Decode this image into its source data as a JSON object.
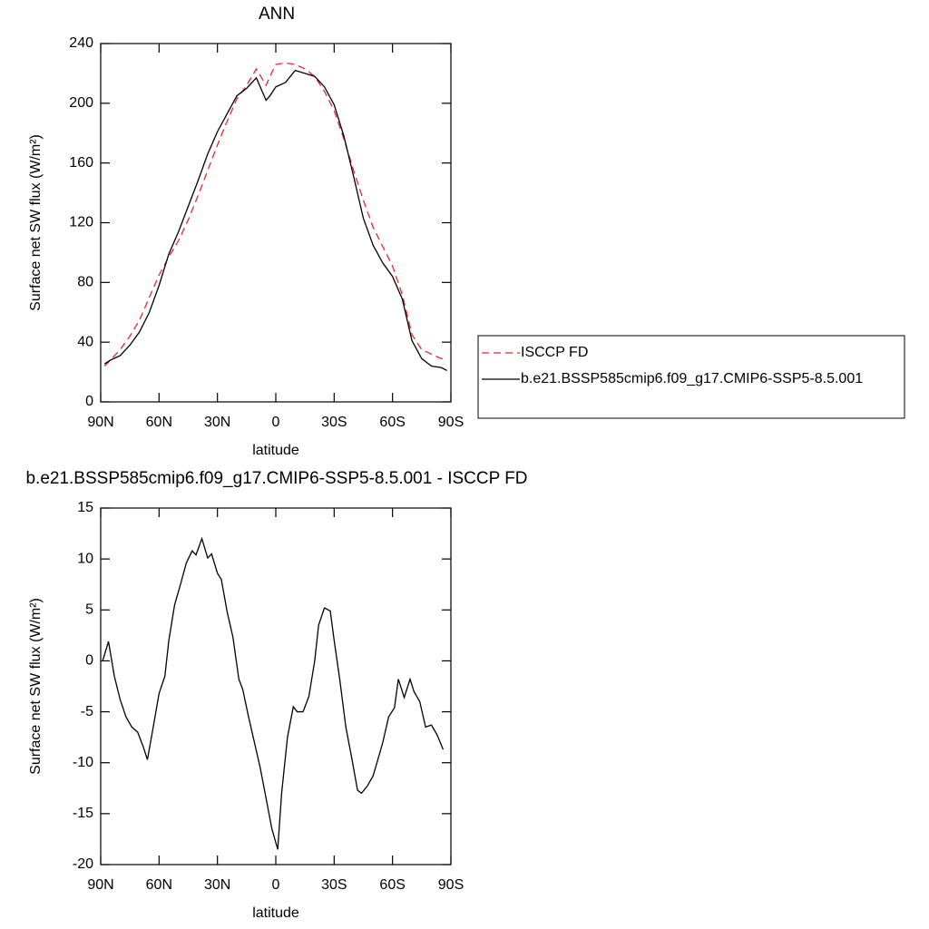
{
  "chart_data": [
    {
      "type": "line",
      "title": "ANN",
      "x_label": "latitude",
      "y_label": "Surface net SW flux (W/m²)",
      "xlim": [
        90,
        -90
      ],
      "xticks": [
        {
          "value": 90,
          "label": "90N"
        },
        {
          "value": 60,
          "label": "60N"
        },
        {
          "value": 30,
          "label": "30N"
        },
        0,
        {
          "value": -30,
          "label": "30S"
        },
        {
          "value": -60,
          "label": "60S"
        },
        {
          "value": -90,
          "label": "90S"
        }
      ],
      "ylim": [
        0,
        240
      ],
      "yticks": [
        0,
        40,
        80,
        120,
        160,
        200,
        240
      ],
      "x": [
        88,
        85,
        80,
        75,
        70,
        65,
        60,
        55,
        50,
        45,
        40,
        35,
        30,
        25,
        20,
        15,
        10,
        5,
        3,
        0,
        -5,
        -10,
        -15,
        -20,
        -25,
        -30,
        -35,
        -40,
        -45,
        -50,
        -55,
        -60,
        -65,
        -70,
        -75,
        -80,
        -85,
        -88
      ],
      "legend": "right",
      "series": [
        {
          "name": "ISCCP FD",
          "color": "#e8262d",
          "dash": true,
          "values": [
            24,
            28,
            35,
            44,
            55,
            70,
            85,
            97,
            108,
            122,
            138,
            155,
            172,
            188,
            203,
            212,
            223,
            212,
            218,
            226,
            227,
            226,
            223,
            218,
            208,
            195,
            176,
            155,
            135,
            117,
            104,
            91,
            72,
            45,
            35,
            32,
            29,
            29
          ]
        },
        {
          "name": "b.e21.BSSP585cmip6.f09_g17.CMIP6-SSP5-8.5.001",
          "color": "#000000",
          "dash": false,
          "values": [
            25.5,
            28,
            31,
            38,
            47,
            60,
            78,
            99,
            114,
            131,
            148,
            166,
            181,
            193,
            205,
            210,
            217,
            202,
            205,
            211,
            214,
            222,
            220,
            218,
            211,
            199,
            178,
            151,
            123,
            105,
            93,
            84,
            69,
            41,
            29,
            24,
            23,
            21
          ]
        }
      ]
    },
    {
      "type": "line",
      "title": "b.e21.BSSP585cmip6.f09_g17.CMIP6-SSP5-8.5.001 - ISCCP FD",
      "x_label": "latitude",
      "y_label": "Surface net SW flux (W/m²)",
      "xlim": [
        90,
        -90
      ],
      "xticks": [
        {
          "value": 90,
          "label": "90N"
        },
        {
          "value": 60,
          "label": "60N"
        },
        {
          "value": 30,
          "label": "30N"
        },
        0,
        {
          "value": -30,
          "label": "30S"
        },
        {
          "value": -60,
          "label": "60S"
        },
        {
          "value": -90,
          "label": "90S"
        }
      ],
      "ylim": [
        -20,
        15
      ],
      "yticks": [
        -20,
        -15,
        -10,
        -5,
        0,
        5,
        10,
        15
      ],
      "x": [
        89,
        86,
        83,
        80,
        77,
        74,
        71,
        68,
        66,
        63,
        60,
        57,
        55,
        52,
        49,
        46,
        43,
        41,
        38,
        35,
        33,
        30,
        28,
        25,
        22,
        19,
        17,
        14,
        11,
        8,
        5,
        2,
        -1,
        -3,
        -6,
        -9,
        -11,
        -14,
        -17,
        -20,
        -22,
        -25,
        -28,
        -30,
        -33,
        -36,
        -39,
        -42,
        -44,
        -47,
        -50,
        -52,
        -55,
        -58,
        -61,
        -63,
        -66,
        -69,
        -71,
        -74,
        -77,
        -80,
        -83,
        -86
      ],
      "series": [
        {
          "color": "#000000",
          "dash": false,
          "values": [
            0,
            1.9,
            -1.5,
            -3.8,
            -5.5,
            -6.5,
            -7,
            -8.5,
            -9.7,
            -6.5,
            -3.2,
            -1.5,
            2,
            5.5,
            7.5,
            9.6,
            10.8,
            10.4,
            12,
            10.1,
            10.5,
            8.6,
            8,
            4.8,
            2.3,
            -1.8,
            -2.8,
            -5.5,
            -8,
            -10.5,
            -13.5,
            -16.5,
            -18.5,
            -13,
            -7.5,
            -4.5,
            -5,
            -5,
            -3.5,
            0,
            3.5,
            5.2,
            4.9,
            2,
            -2,
            -6.5,
            -9.5,
            -12.7,
            -13,
            -12.3,
            -11.3,
            -10,
            -8,
            -5.5,
            -4.6,
            -1.8,
            -3.6,
            -1.8,
            -3,
            -4,
            -6.5,
            -6.3,
            -7.3,
            -8.7
          ]
        }
      ]
    }
  ]
}
